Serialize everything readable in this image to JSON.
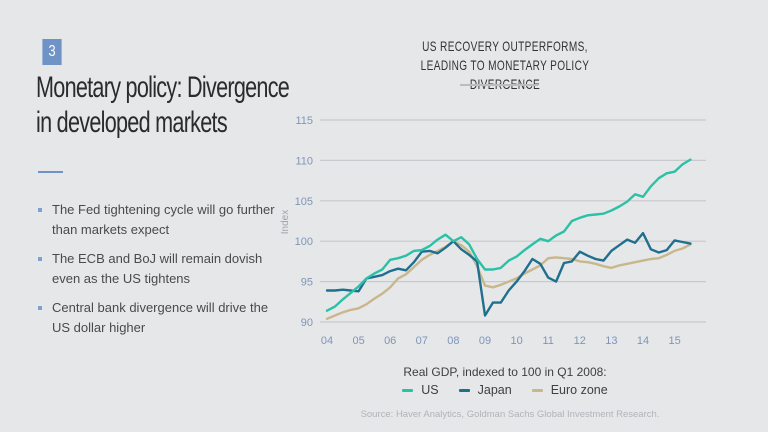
{
  "slide": {
    "number": "3",
    "title_line1": "Monetary policy: Divergence",
    "title_line2": "in developed markets",
    "bullets": [
      "The Fed tightening cycle will go further than markets expect",
      "The ECB and BoJ will remain dovish even as the US tightens",
      "Central bank divergence will drive the US dollar higher"
    ],
    "accent_color": "#6f93c6"
  },
  "chart_data": {
    "type": "line",
    "title_line1": "US RECOVERY OUTPERFORMS,",
    "title_line2": "LEADING TO MONETARY POLICY DIVERGENCE",
    "xlabel": "",
    "ylabel": "Index",
    "ylim": [
      90,
      115
    ],
    "yticks": [
      "115",
      "110",
      "105",
      "100",
      "95",
      "90"
    ],
    "ytick_values": [
      115,
      110,
      105,
      100,
      95,
      90
    ],
    "xticks": [
      "04",
      "05",
      "06",
      "07",
      "08",
      "09",
      "10",
      "11",
      "12",
      "13",
      "14",
      "15"
    ],
    "xtick_values": [
      2004,
      2005,
      2006,
      2007,
      2008,
      2009,
      2010,
      2011,
      2012,
      2013,
      2014,
      2015
    ],
    "xlim": [
      2003.9,
      2016.0
    ],
    "grid": true,
    "frequency": "quarterly",
    "x_start": 2004.0,
    "x_step": 0.25,
    "caption": "Real GDP, indexed to 100 in Q1 2008:",
    "legend_position": "bottom",
    "series": [
      {
        "name": "US",
        "color": "#2cc1a6",
        "values": [
          91.4,
          91.9,
          92.8,
          93.6,
          94.4,
          95.4,
          96.0,
          96.5,
          97.7,
          97.9,
          98.2,
          98.8,
          98.9,
          99.4,
          100.2,
          100.8,
          100.0,
          100.5,
          99.6,
          97.8,
          96.5,
          96.5,
          96.7,
          97.6,
          98.1,
          98.9,
          99.6,
          100.3,
          100.0,
          100.7,
          101.2,
          102.5,
          102.9,
          103.2,
          103.3,
          103.4,
          103.8,
          104.3,
          104.9,
          105.8,
          105.5,
          106.8,
          107.8,
          108.4,
          108.6,
          109.5,
          110.1
        ]
      },
      {
        "name": "Japan",
        "color": "#1f6f8f",
        "values": [
          93.9,
          93.9,
          94.0,
          93.9,
          93.8,
          95.4,
          95.6,
          95.8,
          96.3,
          96.6,
          96.4,
          97.4,
          98.7,
          98.8,
          98.5,
          99.2,
          100.0,
          99.0,
          98.3,
          97.5,
          90.8,
          92.4,
          92.4,
          93.9,
          95.0,
          96.3,
          97.8,
          97.2,
          95.5,
          95.0,
          97.3,
          97.5,
          98.7,
          98.2,
          97.8,
          97.6,
          98.8,
          99.5,
          100.2,
          99.8,
          101.0,
          99.0,
          98.6,
          98.9,
          100.1,
          99.9,
          99.7
        ]
      },
      {
        "name": "Euro zone",
        "color": "#c9b78c",
        "values": [
          90.4,
          90.8,
          91.2,
          91.5,
          91.7,
          92.2,
          92.9,
          93.5,
          94.3,
          95.4,
          95.9,
          96.8,
          97.7,
          98.3,
          98.8,
          99.3,
          100.0,
          99.5,
          98.7,
          96.9,
          94.5,
          94.3,
          94.6,
          95.0,
          95.4,
          96.0,
          96.5,
          97.0,
          97.9,
          98.0,
          97.9,
          97.8,
          97.5,
          97.4,
          97.2,
          96.9,
          96.7,
          97.0,
          97.2,
          97.4,
          97.6,
          97.8,
          97.9,
          98.3,
          98.8,
          99.1,
          99.6
        ]
      }
    ],
    "source": "Source: Haver Analytics, Goldman Sachs Global Investment Research."
  }
}
